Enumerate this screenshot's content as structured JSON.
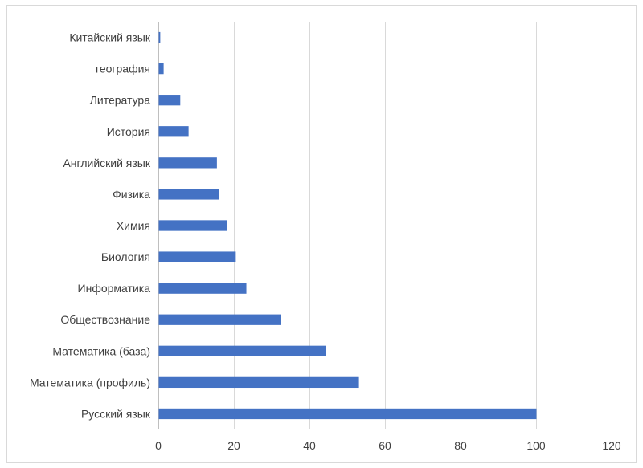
{
  "chart_data": {
    "type": "bar",
    "orientation": "horizontal",
    "categories": [
      "Русский язык",
      "Математика (профиль)",
      "Математика (база)",
      "Обществознание",
      "Информатика",
      "Биология",
      "Химия",
      "Физика",
      "Английский язык",
      "История",
      "Литература",
      "география",
      "Китайский язык"
    ],
    "values": [
      100,
      53,
      44.3,
      32.3,
      23.2,
      20.4,
      18,
      16,
      15.4,
      7.9,
      5.7,
      1.3,
      0.4
    ],
    "xlim": [
      0,
      120
    ],
    "xticks": [
      0,
      20,
      40,
      60,
      80,
      100,
      120
    ],
    "grid": true,
    "legend": "none",
    "bar_color": "#4472c4",
    "title": "",
    "xlabel": "",
    "ylabel": ""
  }
}
